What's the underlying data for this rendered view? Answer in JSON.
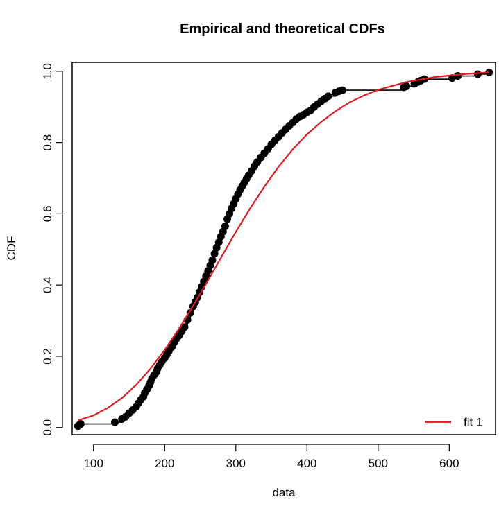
{
  "chart_data": {
    "type": "line",
    "title": "Empirical and theoretical CDFs",
    "xlabel": "data",
    "ylabel": "CDF",
    "xlim": [
      70,
      665
    ],
    "ylim": [
      -0.02,
      1.025
    ],
    "x_ticks": [
      100,
      200,
      300,
      400,
      500,
      600
    ],
    "y_ticks": [
      0.0,
      0.2,
      0.4,
      0.6,
      0.8,
      1.0
    ],
    "x_tick_labels": [
      "100",
      "200",
      "300",
      "400",
      "500",
      "600"
    ],
    "y_tick_labels": [
      "0.0",
      "0.2",
      "0.4",
      "0.6",
      "0.8",
      "1.0"
    ],
    "grid": false,
    "legend": {
      "position": "bottom-right",
      "entries": [
        {
          "name": "fit 1",
          "color": "#e41a1c"
        }
      ]
    },
    "series": [
      {
        "name": "empirical",
        "kind": "step-points",
        "color": "#000000",
        "x": [
          78,
          80,
          82,
          130,
          140,
          145,
          150,
          155,
          160,
          163,
          166,
          170,
          172,
          175,
          178,
          180,
          182,
          185,
          188,
          190,
          193,
          196,
          200,
          203,
          206,
          210,
          213,
          216,
          220,
          224,
          228,
          232,
          236,
          240,
          243,
          246,
          249,
          252,
          255,
          258,
          261,
          264,
          267,
          270,
          273,
          276,
          279,
          282,
          285,
          288,
          291,
          294,
          297,
          300,
          303,
          306,
          309,
          312,
          315,
          318,
          322,
          326,
          330,
          335,
          340,
          345,
          350,
          355,
          360,
          365,
          370,
          375,
          380,
          385,
          390,
          395,
          400,
          405,
          410,
          415,
          420,
          425,
          430,
          440,
          445,
          450,
          536,
          540,
          551,
          556,
          560,
          565,
          604,
          612,
          640,
          656
        ],
        "y": [
          0.004,
          0.007,
          0.01,
          0.015,
          0.024,
          0.03,
          0.04,
          0.049,
          0.058,
          0.068,
          0.077,
          0.086,
          0.097,
          0.107,
          0.117,
          0.127,
          0.137,
          0.147,
          0.155,
          0.165,
          0.175,
          0.185,
          0.195,
          0.205,
          0.215,
          0.226,
          0.238,
          0.248,
          0.258,
          0.27,
          0.282,
          0.302,
          0.322,
          0.34,
          0.352,
          0.365,
          0.38,
          0.395,
          0.41,
          0.425,
          0.44,
          0.455,
          0.47,
          0.488,
          0.505,
          0.52,
          0.536,
          0.55,
          0.565,
          0.585,
          0.6,
          0.615,
          0.628,
          0.642,
          0.655,
          0.667,
          0.678,
          0.688,
          0.698,
          0.708,
          0.72,
          0.733,
          0.745,
          0.758,
          0.77,
          0.782,
          0.795,
          0.806,
          0.816,
          0.827,
          0.837,
          0.847,
          0.856,
          0.866,
          0.873,
          0.878,
          0.885,
          0.89,
          0.9,
          0.908,
          0.916,
          0.923,
          0.93,
          0.94,
          0.944,
          0.947,
          0.955,
          0.958,
          0.965,
          0.97,
          0.974,
          0.978,
          0.981,
          0.987,
          0.992,
          0.997
        ]
      },
      {
        "name": "fit 1",
        "kind": "line",
        "color": "#e41a1c",
        "x": [
          78,
          100,
          120,
          140,
          160,
          180,
          200,
          220,
          240,
          260,
          280,
          300,
          320,
          340,
          360,
          380,
          400,
          420,
          440,
          460,
          480,
          500,
          540,
          580,
          620,
          656
        ],
        "y": [
          0.02,
          0.034,
          0.055,
          0.083,
          0.12,
          0.165,
          0.218,
          0.277,
          0.342,
          0.41,
          0.48,
          0.549,
          0.615,
          0.676,
          0.732,
          0.781,
          0.823,
          0.858,
          0.888,
          0.913,
          0.932,
          0.948,
          0.97,
          0.984,
          0.992,
          0.997
        ]
      }
    ]
  }
}
